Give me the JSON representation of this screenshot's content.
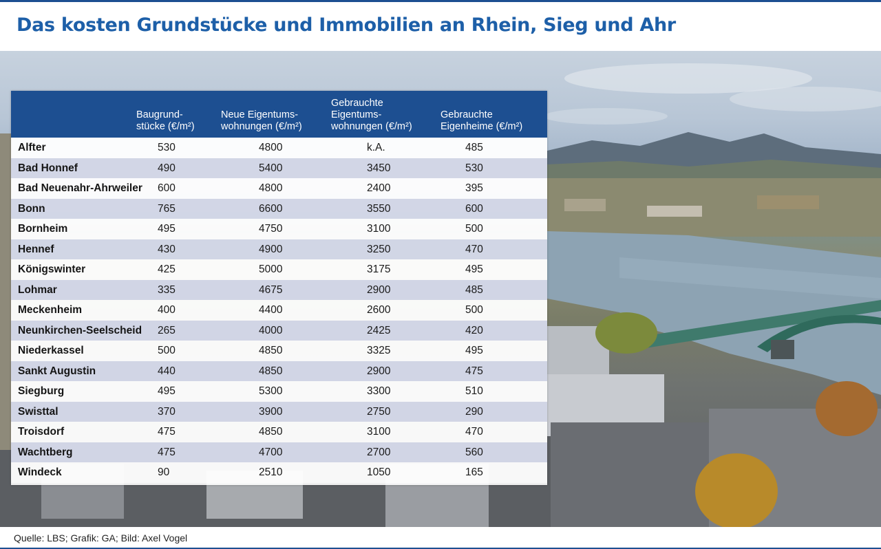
{
  "title": "Das kosten Grundstücke und Immobilien an Rhein, Sieg  und Ahr",
  "source": "Quelle: LBS; Grafik: GA; Bild: Axel Vogel",
  "colors": {
    "header_blue": "#1d4f91",
    "title_blue": "#1d5fa8",
    "row_alt": "#ced3e4"
  },
  "chart_data": {
    "type": "table",
    "columns": [
      {
        "line1": "Baugrund-",
        "line2": "stücke (€/m²)"
      },
      {
        "line1": "Neue Eigentums-",
        "line2": "wohnungen (€/m²)"
      },
      {
        "line0": "Gebrauchte",
        "line1": "Eigentums-",
        "line2": "wohnungen (€/m²)"
      },
      {
        "line1": "Gebrauchte",
        "line2": "Eigenheime (€/m²)"
      }
    ],
    "rows": [
      {
        "city": "Alfter",
        "values": [
          "530",
          "4800",
          "k.A.",
          "485"
        ]
      },
      {
        "city": "Bad Honnef",
        "values": [
          "490",
          "5400",
          "3450",
          "530"
        ]
      },
      {
        "city": "Bad Neuenahr-Ahrweiler",
        "values": [
          "600",
          "4800",
          "2400",
          "395"
        ]
      },
      {
        "city": "Bonn",
        "values": [
          "765",
          "6600",
          "3550",
          "600"
        ]
      },
      {
        "city": "Bornheim",
        "values": [
          "495",
          "4750",
          "3100",
          "500"
        ]
      },
      {
        "city": "Hennef",
        "values": [
          "430",
          "4900",
          "3250",
          "470"
        ]
      },
      {
        "city": "Königswinter",
        "values": [
          "425",
          "5000",
          "3175",
          "495"
        ]
      },
      {
        "city": "Lohmar",
        "values": [
          "335",
          "4675",
          "2900",
          "485"
        ]
      },
      {
        "city": "Meckenheim",
        "values": [
          "400",
          "4400",
          "2600",
          "500"
        ]
      },
      {
        "city": "Neunkirchen-Seelscheid",
        "values": [
          "265",
          "4000",
          "2425",
          "420"
        ]
      },
      {
        "city": "Niederkassel",
        "values": [
          "500",
          "4850",
          "3325",
          "495"
        ]
      },
      {
        "city": "Sankt Augustin",
        "values": [
          "440",
          "4850",
          "2900",
          "475"
        ]
      },
      {
        "city": "Siegburg",
        "values": [
          "495",
          "5300",
          "3300",
          "510"
        ]
      },
      {
        "city": "Swisttal",
        "values": [
          "370",
          "3900",
          "2750",
          "290"
        ]
      },
      {
        "city": "Troisdorf",
        "values": [
          "475",
          "4850",
          "3100",
          "470"
        ]
      },
      {
        "city": "Wachtberg",
        "values": [
          "475",
          "4700",
          "2700",
          "560"
        ]
      },
      {
        "city": "Windeck",
        "values": [
          "90",
          "2510",
          "1050",
          "165"
        ]
      }
    ]
  }
}
